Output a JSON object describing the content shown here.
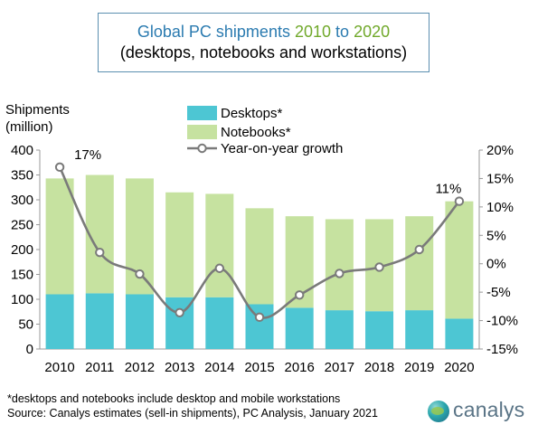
{
  "title": {
    "part1": "Global PC shipments",
    "part2": "2010",
    "part3": "to",
    "part4": "2020",
    "subtitle": "(desktops, notebooks and workstations)"
  },
  "ylabel_left": [
    "Shipments",
    "(million)"
  ],
  "footnote": [
    "*desktops and notebooks include desktop and mobile workstations",
    "Source: Canalys estimates (sell-in shipments), PC Analysis, January 2021"
  ],
  "logo": {
    "text": "canalys"
  },
  "colors": {
    "desktops": "#4dc6d3",
    "notebooks": "#c6e2a0",
    "growth_line": "#7a7a7a",
    "growth_marker_fill": "#ffffff"
  },
  "chart_data": {
    "type": "bar",
    "stacked": true,
    "categories": [
      "2010",
      "2011",
      "2012",
      "2013",
      "2014",
      "2015",
      "2016",
      "2017",
      "2018",
      "2019",
      "2020"
    ],
    "series": [
      {
        "name": "Desktops*",
        "values": [
          110,
          112,
          110,
          104,
          104,
          90,
          83,
          78,
          76,
          78,
          61
        ]
      },
      {
        "name": "Notebooks*",
        "values": [
          233,
          238,
          233,
          211,
          208,
          193,
          184,
          183,
          185,
          189,
          236
        ]
      }
    ],
    "line_series": {
      "name": "Year-on-year growth",
      "values": [
        17,
        2,
        -1.8,
        -8.6,
        -0.8,
        -9.4,
        -5.5,
        -1.7,
        -0.6,
        2.5,
        11
      ],
      "axis": "right"
    },
    "data_labels": [
      {
        "index": 0,
        "text": "17%"
      },
      {
        "index": 10,
        "text": "11%"
      }
    ],
    "y_left": {
      "min": 0,
      "max": 400,
      "step": 50,
      "ticks": [
        "0",
        "50",
        "100",
        "150",
        "200",
        "250",
        "300",
        "350",
        "400"
      ]
    },
    "y_right": {
      "min": -15,
      "max": 20,
      "step": 5,
      "ticks": [
        "-15%",
        "-10%",
        "-5%",
        "0%",
        "5%",
        "10%",
        "15%",
        "20%"
      ]
    },
    "legend_placement": "top-center",
    "grid": false
  }
}
